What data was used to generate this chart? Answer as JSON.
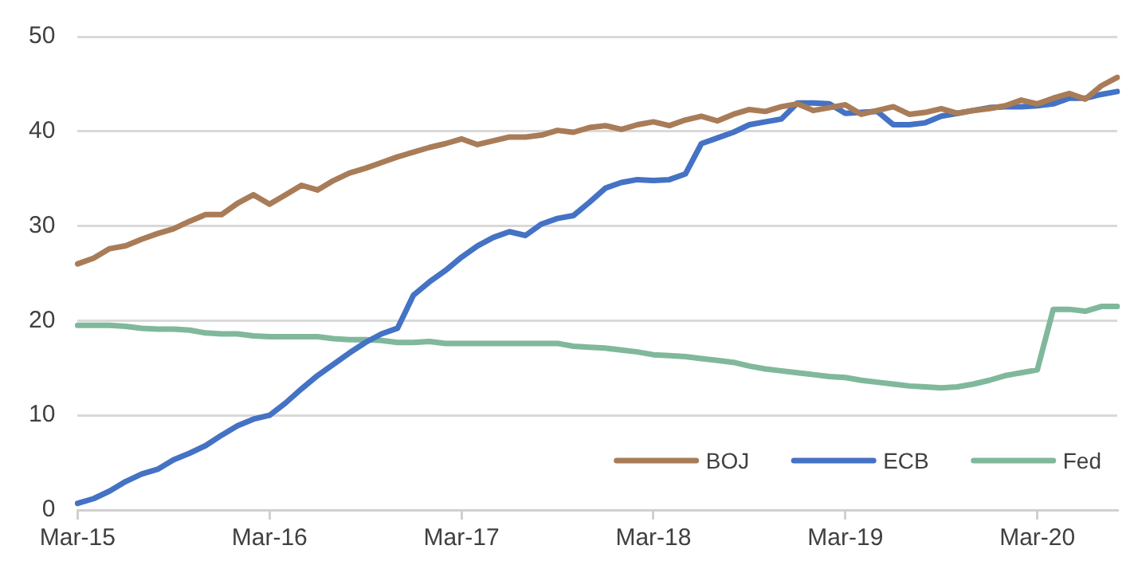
{
  "chart_data": {
    "type": "line",
    "categories": [
      "Mar-15",
      null,
      null,
      null,
      null,
      null,
      null,
      null,
      null,
      null,
      null,
      null,
      "Mar-16",
      null,
      null,
      null,
      null,
      null,
      null,
      null,
      null,
      null,
      null,
      null,
      "Mar-17",
      null,
      null,
      null,
      null,
      null,
      null,
      null,
      null,
      null,
      null,
      null,
      "Mar-18",
      null,
      null,
      null,
      null,
      null,
      null,
      null,
      null,
      null,
      null,
      null,
      "Mar-19",
      null,
      null,
      null,
      null,
      null,
      null,
      null,
      null,
      null,
      null,
      null,
      "Mar-20",
      null,
      null,
      null,
      null,
      null
    ],
    "series": [
      {
        "name": "BOJ",
        "color": "#a97c58",
        "values": [
          26.0,
          26.6,
          27.6,
          27.9,
          28.6,
          29.2,
          29.7,
          30.5,
          31.2,
          31.2,
          32.4,
          33.3,
          32.3,
          33.3,
          34.3,
          33.8,
          34.8,
          35.6,
          36.1,
          36.7,
          37.3,
          37.8,
          38.3,
          38.7,
          39.2,
          38.6,
          39.0,
          39.4,
          39.4,
          39.6,
          40.1,
          39.9,
          40.4,
          40.6,
          40.2,
          40.7,
          41.0,
          40.6,
          41.2,
          41.6,
          41.1,
          41.8,
          42.3,
          42.1,
          42.6,
          42.9,
          42.2,
          42.5,
          42.8,
          41.8,
          42.2,
          42.6,
          41.8,
          42.0,
          42.4,
          41.9,
          42.2,
          42.4,
          42.7,
          43.3,
          42.9,
          43.5,
          44.0,
          43.4,
          44.8,
          45.7
        ]
      },
      {
        "name": "ECB",
        "color": "#4472c4",
        "values": [
          0.7,
          1.2,
          2.0,
          3.0,
          3.8,
          4.3,
          5.3,
          6.0,
          6.8,
          7.9,
          8.9,
          9.6,
          10.0,
          11.3,
          12.8,
          14.2,
          15.4,
          16.6,
          17.7,
          18.6,
          19.2,
          22.7,
          24.1,
          25.3,
          26.7,
          27.9,
          28.8,
          29.4,
          29.0,
          30.2,
          30.8,
          31.1,
          32.5,
          34.0,
          34.6,
          34.9,
          34.8,
          34.9,
          35.5,
          38.7,
          39.3,
          39.9,
          40.7,
          41.0,
          41.3,
          43.0,
          43.0,
          42.9,
          41.9,
          42.0,
          42.1,
          40.7,
          40.7,
          40.9,
          41.6,
          41.9,
          42.2,
          42.5,
          42.6,
          42.6,
          42.7,
          42.9,
          43.5,
          43.5,
          43.9,
          44.2
        ]
      },
      {
        "name": "Fed",
        "color": "#80b89c",
        "values": [
          19.5,
          19.5,
          19.5,
          19.4,
          19.2,
          19.1,
          19.1,
          19.0,
          18.7,
          18.6,
          18.6,
          18.4,
          18.3,
          18.3,
          18.3,
          18.3,
          18.1,
          18.0,
          18.0,
          17.9,
          17.7,
          17.7,
          17.8,
          17.6,
          17.6,
          17.6,
          17.6,
          17.6,
          17.6,
          17.6,
          17.6,
          17.3,
          17.2,
          17.1,
          16.9,
          16.7,
          16.4,
          16.3,
          16.2,
          16.0,
          15.8,
          15.6,
          15.2,
          14.9,
          14.7,
          14.5,
          14.3,
          14.1,
          14.0,
          13.7,
          13.5,
          13.3,
          13.1,
          13.0,
          12.9,
          13.0,
          13.3,
          13.7,
          14.2,
          14.5,
          14.8,
          21.2,
          21.2,
          21.0,
          21.5,
          21.5
        ]
      }
    ],
    "ylim": [
      0,
      50
    ],
    "yticks": [
      0,
      10,
      20,
      30,
      40,
      50
    ],
    "grid": "y",
    "legend": "bottom right",
    "marker": "none",
    "line_style": "solid"
  }
}
